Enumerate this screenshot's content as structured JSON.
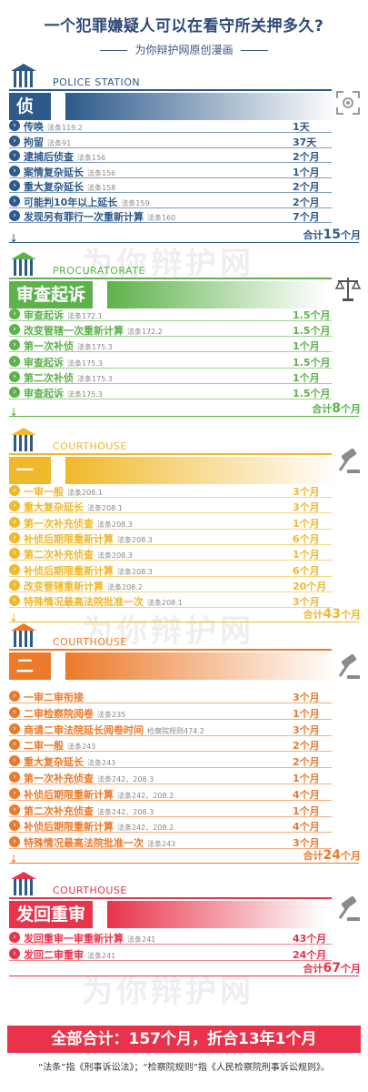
{
  "header": {
    "title": "一个犯罪嫌疑人可以在看守所关押多久?",
    "subtitle": "为你辩护网原创漫画"
  },
  "watermark": "为你辩护网",
  "colors": {
    "blue": "#2d5a8a",
    "green": "#5db24b",
    "yellow": "#f0b92b",
    "orange": "#ec7a2a",
    "pink": "#e8334a"
  },
  "sections": [
    {
      "en": "POLICE STATION",
      "title": "侦查",
      "icon": "scan-icon",
      "items": [
        {
          "name": "传唤",
          "law": "法条119.2",
          "val": "1天"
        },
        {
          "name": "拘留",
          "law": "法条91",
          "val": "37天"
        },
        {
          "name": "逮捕后侦查",
          "law": "法条156",
          "val": "2个月"
        },
        {
          "name": "案情复杂延长",
          "law": "法条156",
          "val": "1个月"
        },
        {
          "name": "重大复杂延长",
          "law": "法条158",
          "val": "2个月"
        },
        {
          "name": "可能判10年以上延长",
          "law": "法条159",
          "val": "2个月"
        },
        {
          "name": "发现另有罪行一次重新计算",
          "law": "法条160",
          "val": "7个月"
        }
      ],
      "total_prefix": "合计",
      "total_num": "15",
      "total_unit": "个月"
    },
    {
      "en": "PROCURATORATE",
      "title": "审查起诉",
      "icon": "scales-icon",
      "items": [
        {
          "name": "审查起诉",
          "law": "法条172.1",
          "val": "1.5个月"
        },
        {
          "name": "改变管辖一次重新计算",
          "law": "法条172.2",
          "val": "1.5个月"
        },
        {
          "name": "第一次补侦",
          "law": "法条175.3",
          "val": "1个月"
        },
        {
          "name": "审查起诉",
          "law": "法条175.3",
          "val": "1.5个月"
        },
        {
          "name": "第二次补侦",
          "law": "法条175.3",
          "val": "1个月"
        },
        {
          "name": "审查起诉",
          "law": "法条175.3",
          "val": "1.5个月"
        }
      ],
      "total_prefix": "合计",
      "total_num": "8",
      "total_unit": "个月"
    },
    {
      "en": "COURTHOUSE",
      "title": "一审",
      "icon": "gavel-icon",
      "items": [
        {
          "name": "一审一般",
          "law": "法条208.1",
          "val": "3个月"
        },
        {
          "name": "重大复杂延长",
          "law": "法条208.1",
          "val": "3个月"
        },
        {
          "name": "第一次补充侦查",
          "law": "法条208.3",
          "val": "1个月"
        },
        {
          "name": "补侦后期限重新计算",
          "law": "法条208.3",
          "val": "6个月"
        },
        {
          "name": "第二次补充侦查",
          "law": "法条208.3",
          "val": "1个月"
        },
        {
          "name": "补侦后期限重新计算",
          "law": "法条208.3",
          "val": "6个月"
        },
        {
          "name": "改变管辖重新计算",
          "law": "法条208.2",
          "val": "20个月"
        },
        {
          "name": "特殊情况最高法院批准一次",
          "law": "法条208.1",
          "val": "3个月"
        }
      ],
      "total_prefix": "合计",
      "total_num": "43",
      "total_unit": "个月"
    },
    {
      "en": "COURTHOUSE",
      "title": "二审",
      "icon": "gavel-icon",
      "items": [
        {
          "name": "一审二审衔接",
          "law": "",
          "val": "3个月"
        },
        {
          "name": "二审检察院阅卷",
          "law": "法条235",
          "val": "1个月"
        },
        {
          "name": "商请二审法院延长阅卷时间",
          "law": "检察院规则474.2",
          "val": "3个月"
        },
        {
          "name": "二审一般",
          "law": "法条243",
          "val": "2个月"
        },
        {
          "name": "重大复杂延长",
          "law": "法条243",
          "val": "2个月"
        },
        {
          "name": "第一次补充侦查",
          "law": "法条242、208.3",
          "val": "1个月"
        },
        {
          "name": "补侦后期限重新计算",
          "law": "法条242、208.2",
          "val": "4个月"
        },
        {
          "name": "第二次补充侦查",
          "law": "法条242、208.3",
          "val": "1个月"
        },
        {
          "name": "补侦后期限重新计算",
          "law": "法条242、208.2",
          "val": "4个月"
        },
        {
          "name": "特殊情况最高法院批准一次",
          "law": "法条243",
          "val": "3个月"
        }
      ],
      "total_prefix": "合计",
      "total_num": "24",
      "total_unit": "个月"
    },
    {
      "en": "COURTHOUSE",
      "title": "发回重审",
      "icon": "gavel-icon",
      "items": [
        {
          "name": "发回重审一审重新计算",
          "law": "法条241",
          "val": "43个月"
        },
        {
          "name": "发回二审重审",
          "law": "法条241",
          "val": "24个月"
        }
      ],
      "total_prefix": "合计",
      "total_num": "67",
      "total_unit": "个月"
    }
  ],
  "grand_total": "全部合计：157个月，折合13年1个月",
  "footnote": "“法条”指《刑事诉讼法》；“检察院规则”指《人民检察院刑事诉讼规则》。"
}
